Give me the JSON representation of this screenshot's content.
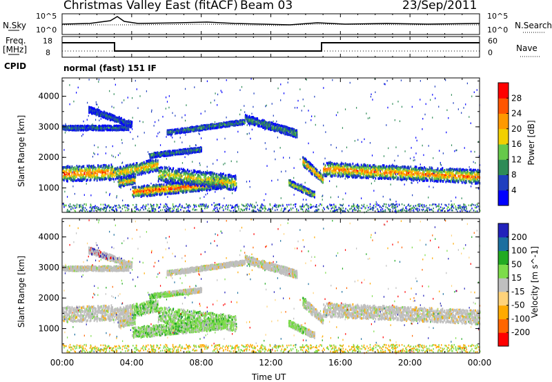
{
  "header": {
    "station": "Christmas Valley East (fitACF)",
    "beam": "Beam 03",
    "date": "23/Sep/2011"
  },
  "top_panel": {
    "left_label": "N.Sky",
    "right_label": "N.Search",
    "left_ticks": [
      "10^5",
      "10^0"
    ],
    "right_ticks": [
      "10^5",
      "10^0"
    ]
  },
  "freq_panel": {
    "left_label_1": "Freq.",
    "left_label_2": "[MHz]",
    "right_label": "Nave",
    "left_ticks": [
      "18",
      "8"
    ],
    "right_ticks": [
      "60",
      "0"
    ]
  },
  "cpid": {
    "label": "CPID",
    "value": "normal (fast) 151 IF"
  },
  "colors": {
    "power_scale": [
      "#0000ff",
      "#1f3fbf",
      "#2e8b57",
      "#66c94a",
      "#f2d000",
      "#ff9900",
      "#ff5500",
      "#ff0000"
    ],
    "velocity_scale": [
      "#ff0000",
      "#ff6600",
      "#ffaa00",
      "#ffd37a",
      "#bfbfbf",
      "#7ddc4a",
      "#22aa22",
      "#1b6f9f",
      "#2222bb"
    ]
  },
  "chart_data": [
    {
      "type": "heatmap",
      "ylabel": "Slant Range [km]",
      "y_ticks": [
        "1000",
        "2000",
        "3000",
        "4000"
      ],
      "colorbar_label": "Power [dB]",
      "colorbar_ticks": [
        "4",
        "8",
        "12",
        "16",
        "20",
        "24",
        "28"
      ]
    },
    {
      "type": "heatmap",
      "ylabel": "Slant Range [km]",
      "y_ticks": [
        "1000",
        "2000",
        "3000",
        "4000"
      ],
      "colorbar_label": "Velocity [m s^-1]",
      "colorbar_ticks": [
        "-200",
        "-100",
        "-50",
        "-15",
        "15",
        "50",
        "100",
        "200"
      ],
      "xlabel": "Time UT",
      "x_ticks": [
        "00:00",
        "04:00",
        "08:00",
        "12:00",
        "16:00",
        "20:00",
        "00:00"
      ]
    }
  ]
}
